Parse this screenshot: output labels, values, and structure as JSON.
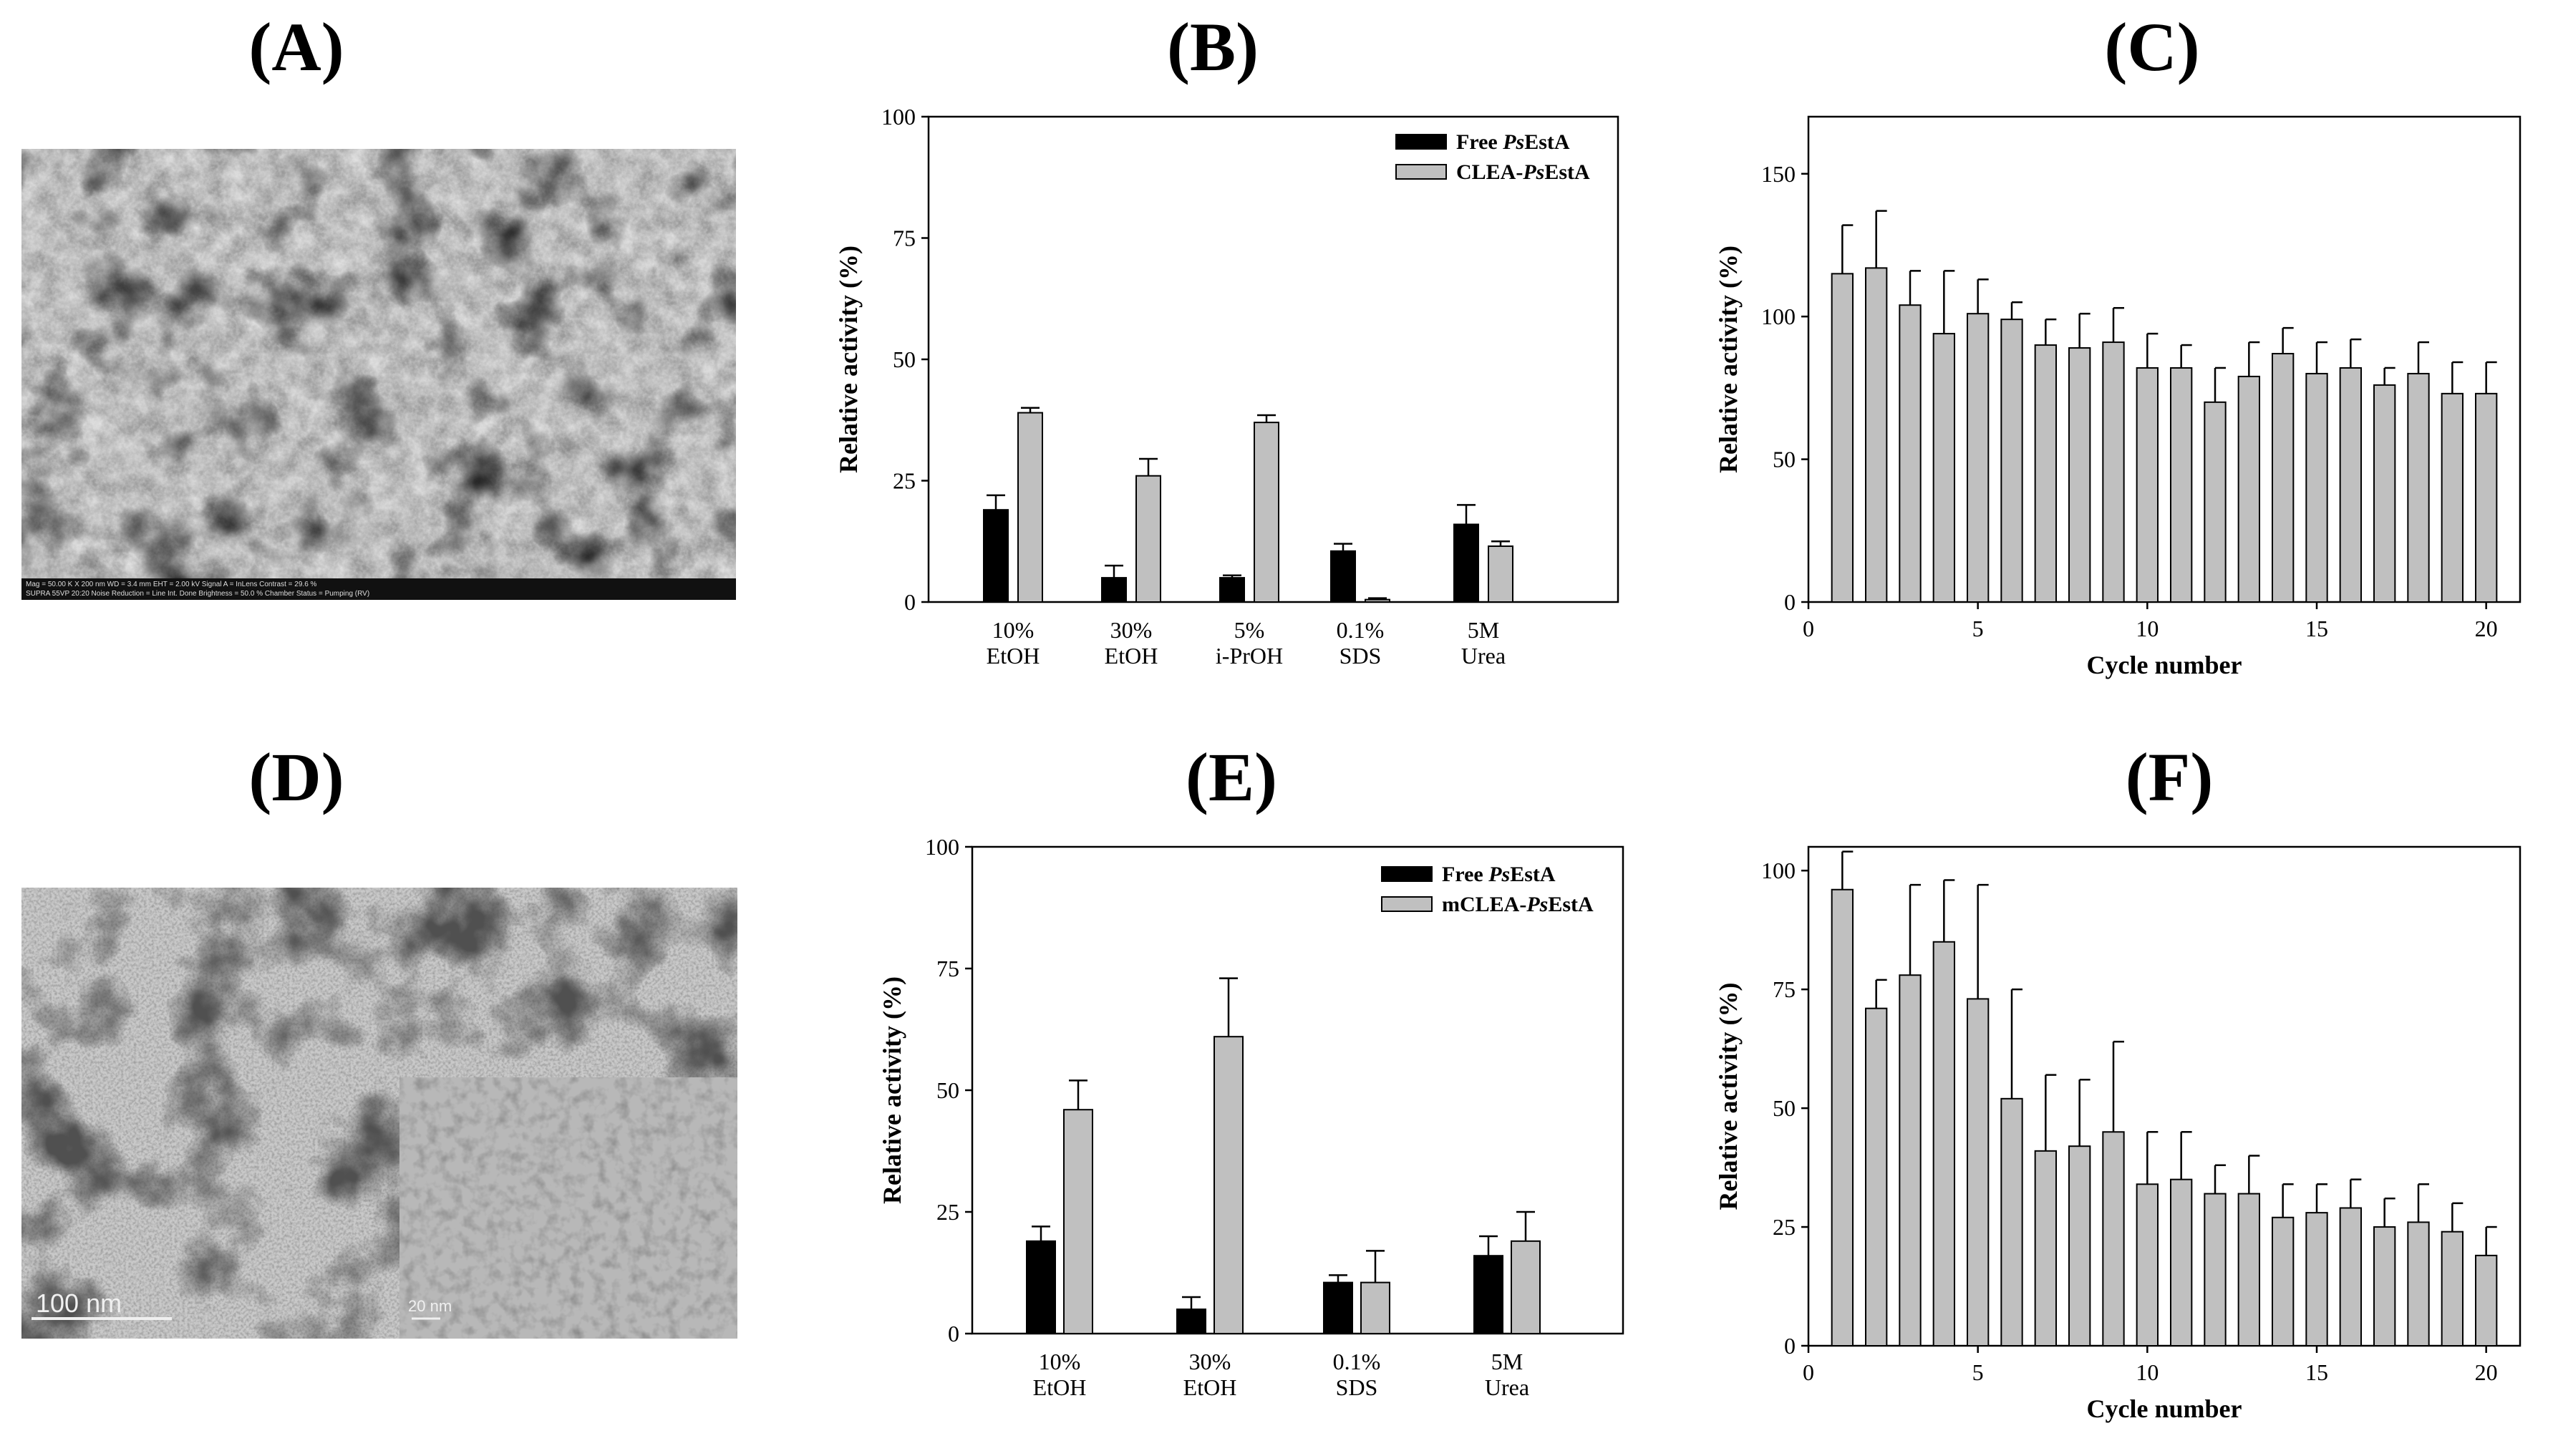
{
  "panels": {
    "A": "(A)",
    "B": "(B)",
    "C": "(C)",
    "D": "(D)",
    "E": "(E)",
    "F": "(F)"
  },
  "images": {
    "sem": {
      "footer_text": "Mag = 50.00 K X   200 nm   WD = 3.4 mm   EHT = 2.00 kV   Signal A = InLens   Contrast = 29.6 %",
      "footer_text2": "SUPRA 55VP 20:20   Noise Reduction = Line Int. Done   Brightness = 50.0 %   Chamber Status = Pumping (RV)"
    },
    "tem": {
      "scale_label": "100 nm",
      "inset_scale_label": "20 nm"
    }
  },
  "chart_data": [
    {
      "id": "B",
      "type": "bar",
      "categories": [
        [
          "10%",
          "EtOH"
        ],
        [
          "30%",
          "EtOH"
        ],
        [
          "5%",
          "i-PrOH"
        ],
        [
          "0.1%",
          "SDS"
        ],
        [
          "5M",
          "Urea"
        ]
      ],
      "series": [
        {
          "name": "Free PsEstA",
          "name_plain": "Free ",
          "name_italic": "Ps",
          "name_tail": "EstA",
          "color": "#000000",
          "values": [
            19,
            5,
            5,
            10.5,
            16
          ],
          "errors": [
            3,
            2.5,
            0.5,
            1.5,
            4
          ]
        },
        {
          "name": "CLEA-PsEstA",
          "name_plain": "CLEA-",
          "name_italic": "Ps",
          "name_tail": "EstA",
          "color": "#c0c0c0",
          "values": [
            39,
            26,
            37,
            0.5,
            11.5
          ],
          "errors": [
            1,
            3.5,
            1.5,
            0.3,
            1
          ]
        }
      ],
      "ylabel": "Relative activity (%)",
      "ylim": [
        0,
        100
      ],
      "yticks": [
        0,
        25,
        50,
        75,
        100
      ],
      "legend": "top-right"
    },
    {
      "id": "C",
      "type": "bar",
      "x": [
        1,
        2,
        3,
        4,
        5,
        6,
        7,
        8,
        9,
        10,
        11,
        12,
        13,
        14,
        15,
        16,
        17,
        18,
        19,
        20
      ],
      "series": [
        {
          "color": "#c0c0c0",
          "values": [
            115,
            117,
            104,
            94,
            101,
            99,
            90,
            89,
            91,
            82,
            82,
            70,
            79,
            87,
            80,
            82,
            76,
            80,
            73,
            73
          ],
          "errors": [
            17,
            20,
            12,
            22,
            12,
            6,
            9,
            12,
            12,
            12,
            8,
            12,
            12,
            9,
            11,
            10,
            6,
            11,
            11,
            11
          ]
        }
      ],
      "xlabel": "Cycle number",
      "ylabel": "Relative activity (%)",
      "xlim": [
        0,
        21
      ],
      "xticks": [
        0,
        5,
        10,
        15,
        20
      ],
      "ylim": [
        0,
        170
      ],
      "yticks": [
        0,
        50,
        100,
        150
      ]
    },
    {
      "id": "E",
      "type": "bar",
      "categories": [
        [
          "10%",
          "EtOH"
        ],
        [
          "30%",
          "EtOH"
        ],
        [
          "0.1%",
          "SDS"
        ],
        [
          "5M",
          "Urea"
        ]
      ],
      "series": [
        {
          "name": "Free PsEstA",
          "name_plain": "Free ",
          "name_italic": "Ps",
          "name_tail": "EstA",
          "color": "#000000",
          "values": [
            19,
            5,
            10.5,
            16
          ],
          "errors": [
            3,
            2.5,
            1.5,
            4
          ]
        },
        {
          "name": "mCLEA-PsEstA",
          "name_plain": "mCLEA-",
          "name_italic": "Ps",
          "name_tail": "EstA",
          "color": "#c0c0c0",
          "values": [
            46,
            61,
            10.5,
            19
          ],
          "errors": [
            6,
            12,
            6.5,
            6
          ]
        }
      ],
      "ylabel": "Relative activity (%)",
      "ylim": [
        0,
        100
      ],
      "yticks": [
        0,
        25,
        50,
        75,
        100
      ],
      "legend": "top-right"
    },
    {
      "id": "F",
      "type": "bar",
      "x": [
        1,
        2,
        3,
        4,
        5,
        6,
        7,
        8,
        9,
        10,
        11,
        12,
        13,
        14,
        15,
        16,
        17,
        18,
        19,
        20
      ],
      "series": [
        {
          "color": "#c0c0c0",
          "values": [
            96,
            71,
            78,
            85,
            73,
            52,
            41,
            42,
            45,
            34,
            35,
            32,
            32,
            27,
            28,
            29,
            25,
            26,
            24,
            19
          ],
          "errors": [
            8,
            6,
            19,
            13,
            24,
            23,
            16,
            14,
            19,
            11,
            10,
            6,
            8,
            7,
            6,
            6,
            6,
            8,
            6,
            6
          ]
        }
      ],
      "xlabel": "Cycle number",
      "ylabel": "Relative activity (%)",
      "xlim": [
        0,
        21
      ],
      "xticks": [
        0,
        5,
        10,
        15,
        20
      ],
      "ylim": [
        0,
        105
      ],
      "yticks": [
        0,
        25,
        50,
        75,
        100
      ]
    }
  ]
}
